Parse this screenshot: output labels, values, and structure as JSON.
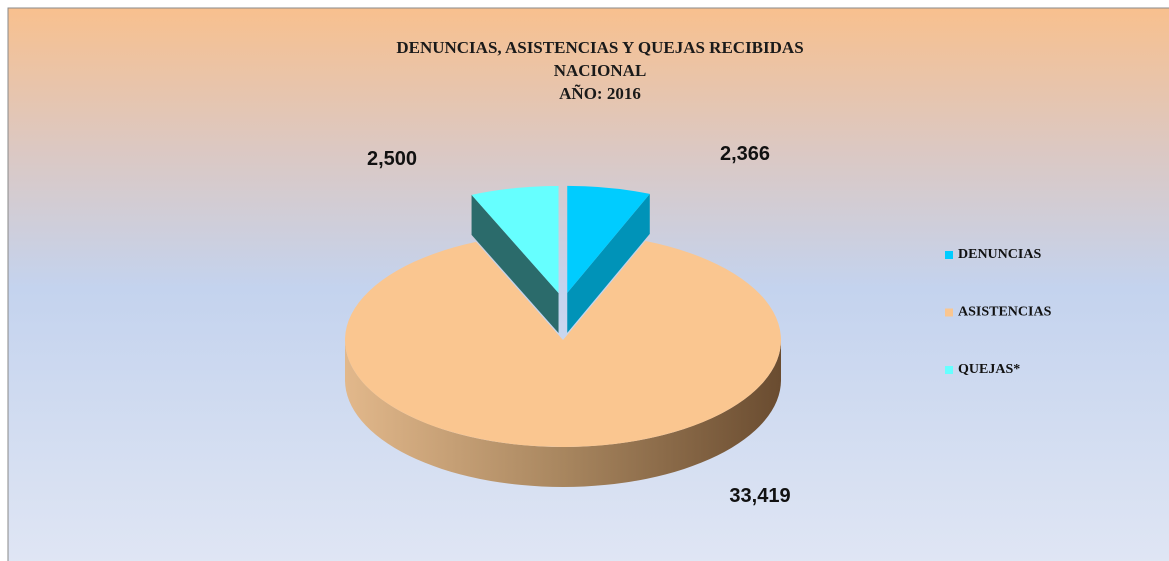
{
  "chart_data": {
    "type": "pie3d",
    "title_lines": [
      "DENUNCIAS,  ASISTENCIAS  Y  QUEJAS RECIBIDAS",
      "NACIONAL",
      "AÑO:  2016"
    ],
    "categories": [
      "DENUNCIAS",
      "ASISTENCIAS",
      "QUEJAS*"
    ],
    "values": [
      2366,
      33419,
      2500
    ],
    "value_labels": [
      "2,366",
      "33,419",
      "2,500"
    ],
    "colors": [
      "#00ccff",
      "#fac690",
      "#66ffff"
    ],
    "exploded": [
      true,
      false,
      true
    ],
    "legend": "right"
  }
}
